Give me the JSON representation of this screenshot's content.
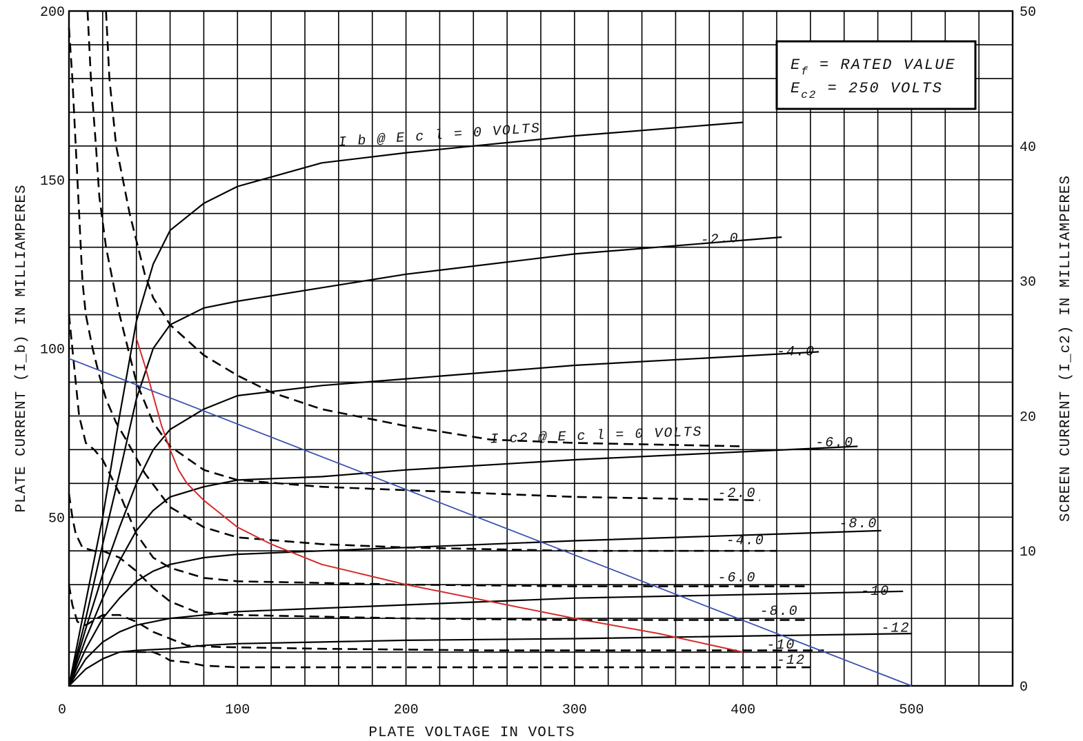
{
  "chart_data": {
    "type": "line",
    "title": "",
    "xlabel": "PLATE VOLTAGE IN VOLTS",
    "ylabel_left": "PLATE CURRENT (I_b) IN MILLIAMPERES",
    "ylabel_right": "SCREEN CURRENT (I_c2) IN MILLIAMPERES",
    "xlim": [
      0,
      560
    ],
    "ylim_left": [
      0,
      200
    ],
    "ylim_right": [
      0,
      50
    ],
    "grid": true,
    "x_ticks": [
      "0",
      "100",
      "200",
      "300",
      "400",
      "500"
    ],
    "y_ticks_left": [
      "50",
      "100",
      "150",
      "200"
    ],
    "y_ticks_right": [
      "0",
      "10",
      "20",
      "30",
      "40",
      "50"
    ],
    "conditions_box": {
      "line1_symbol": "E",
      "line1_sub": "f",
      "line1_text": "= RATED VALUE",
      "line2_symbol": "E",
      "line2_sub": "c2",
      "line2_text": "= 250 VOLTS"
    },
    "plate_series": [
      {
        "label": "I b @ E c l = 0 VOLTS",
        "label_at": [
          160,
          160
        ],
        "label_rot": -4,
        "points": [
          [
            0,
            0
          ],
          [
            10,
            25
          ],
          [
            20,
            50
          ],
          [
            30,
            80
          ],
          [
            40,
            108
          ],
          [
            50,
            125
          ],
          [
            60,
            135
          ],
          [
            80,
            143
          ],
          [
            100,
            148
          ],
          [
            150,
            155
          ],
          [
            200,
            158
          ],
          [
            300,
            163
          ],
          [
            400,
            167
          ]
        ]
      },
      {
        "label": "-2.0",
        "label_at": [
          375,
          131
        ],
        "label_rot": -3,
        "points": [
          [
            0,
            0
          ],
          [
            10,
            20
          ],
          [
            20,
            42
          ],
          [
            30,
            63
          ],
          [
            40,
            85
          ],
          [
            50,
            100
          ],
          [
            60,
            107
          ],
          [
            80,
            112
          ],
          [
            100,
            114
          ],
          [
            150,
            118
          ],
          [
            200,
            122
          ],
          [
            300,
            128
          ],
          [
            423,
            133
          ]
        ]
      },
      {
        "label": "-4.0",
        "label_at": [
          420,
          98
        ],
        "label_rot": 0,
        "points": [
          [
            0,
            0
          ],
          [
            10,
            17
          ],
          [
            20,
            33
          ],
          [
            30,
            47
          ],
          [
            40,
            60
          ],
          [
            50,
            70
          ],
          [
            60,
            76
          ],
          [
            80,
            82
          ],
          [
            100,
            86
          ],
          [
            150,
            89
          ],
          [
            200,
            91
          ],
          [
            300,
            95
          ],
          [
            445,
            99
          ]
        ]
      },
      {
        "label": "-6.0",
        "label_at": [
          443,
          71
        ],
        "label_rot": 0,
        "points": [
          [
            0,
            0
          ],
          [
            10,
            14
          ],
          [
            20,
            26
          ],
          [
            30,
            37
          ],
          [
            40,
            46
          ],
          [
            50,
            52
          ],
          [
            60,
            56
          ],
          [
            80,
            59
          ],
          [
            100,
            61
          ],
          [
            150,
            62
          ],
          [
            200,
            64
          ],
          [
            300,
            67
          ],
          [
            468,
            71
          ]
        ]
      },
      {
        "label": "-8.0",
        "label_at": [
          457,
          47
        ],
        "label_rot": 0,
        "points": [
          [
            0,
            0
          ],
          [
            10,
            11
          ],
          [
            20,
            20
          ],
          [
            30,
            26
          ],
          [
            40,
            31
          ],
          [
            50,
            34
          ],
          [
            60,
            36
          ],
          [
            80,
            38
          ],
          [
            100,
            39
          ],
          [
            150,
            40
          ],
          [
            200,
            41
          ],
          [
            300,
            43
          ],
          [
            482,
            46
          ]
        ]
      },
      {
        "label": "-10",
        "label_at": [
          470,
          27
        ],
        "label_rot": 0,
        "points": [
          [
            0,
            0
          ],
          [
            10,
            8
          ],
          [
            20,
            13
          ],
          [
            30,
            16
          ],
          [
            40,
            18
          ],
          [
            60,
            20
          ],
          [
            80,
            21
          ],
          [
            100,
            22
          ],
          [
            150,
            23
          ],
          [
            200,
            24
          ],
          [
            300,
            26
          ],
          [
            495,
            28
          ]
        ]
      },
      {
        "label": "-12",
        "label_at": [
          482,
          16
        ],
        "label_rot": 0,
        "points": [
          [
            0,
            0
          ],
          [
            10,
            5
          ],
          [
            20,
            8
          ],
          [
            30,
            10
          ],
          [
            40,
            10.5
          ],
          [
            60,
            11
          ],
          [
            80,
            12
          ],
          [
            100,
            12.5
          ],
          [
            150,
            13
          ],
          [
            200,
            13.5
          ],
          [
            300,
            14
          ],
          [
            500,
            15.5
          ]
        ]
      }
    ],
    "screen_series": [
      {
        "label": "I c2 @ E c l = 0 VOLTS",
        "label_at": [
          250,
          72
        ],
        "label_rot": -2,
        "points": [
          [
            22,
            200
          ],
          [
            24,
            180
          ],
          [
            28,
            160
          ],
          [
            32,
            150
          ],
          [
            36,
            140
          ],
          [
            40,
            132
          ],
          [
            45,
            122
          ],
          [
            50,
            115
          ],
          [
            60,
            107
          ],
          [
            80,
            98
          ],
          [
            100,
            92
          ],
          [
            120,
            87
          ],
          [
            150,
            82
          ],
          [
            200,
            77
          ],
          [
            250,
            73
          ],
          [
            300,
            72
          ],
          [
            400,
            71
          ]
        ]
      },
      {
        "label": "-2.0",
        "label_at": [
          385,
          56
        ],
        "label_rot": 0,
        "points": [
          [
            11,
            200
          ],
          [
            13,
            180
          ],
          [
            16,
            160
          ],
          [
            18,
            145
          ],
          [
            22,
            130
          ],
          [
            26,
            120
          ],
          [
            30,
            110
          ],
          [
            35,
            100
          ],
          [
            40,
            90
          ],
          [
            50,
            78
          ],
          [
            60,
            71
          ],
          [
            80,
            64
          ],
          [
            100,
            61
          ],
          [
            150,
            59
          ],
          [
            200,
            58
          ],
          [
            300,
            56
          ],
          [
            410,
            55
          ]
        ]
      },
      {
        "label": "-4.0",
        "label_at": [
          390,
          42
        ],
        "label_rot": 0,
        "points": [
          [
            0,
            195
          ],
          [
            2,
            180
          ],
          [
            4,
            160
          ],
          [
            6,
            140
          ],
          [
            8,
            120
          ],
          [
            10,
            110
          ],
          [
            14,
            100
          ],
          [
            18,
            92
          ],
          [
            22,
            85
          ],
          [
            28,
            78
          ],
          [
            35,
            72
          ],
          [
            45,
            63
          ],
          [
            60,
            53
          ],
          [
            80,
            47
          ],
          [
            100,
            44
          ],
          [
            150,
            42
          ],
          [
            200,
            41
          ],
          [
            300,
            40
          ],
          [
            420,
            40
          ]
        ]
      },
      {
        "label": "-6.0",
        "label_at": [
          385,
          31
        ],
        "label_rot": 0,
        "points": [
          [
            0,
            110
          ],
          [
            2,
            100
          ],
          [
            4,
            90
          ],
          [
            6,
            80
          ],
          [
            10,
            72
          ],
          [
            15,
            70
          ],
          [
            20,
            67
          ],
          [
            25,
            62
          ],
          [
            30,
            57
          ],
          [
            40,
            45
          ],
          [
            50,
            38
          ],
          [
            60,
            35
          ],
          [
            80,
            32
          ],
          [
            100,
            31
          ],
          [
            200,
            30
          ],
          [
            300,
            29.5
          ],
          [
            440,
            29.5
          ]
        ]
      },
      {
        "label": "-8.0",
        "label_at": [
          410,
          21
        ],
        "label_rot": 0,
        "points": [
          [
            0,
            57
          ],
          [
            2,
            50
          ],
          [
            4,
            45
          ],
          [
            8,
            41
          ],
          [
            15,
            40
          ],
          [
            20,
            40
          ],
          [
            30,
            38
          ],
          [
            40,
            34
          ],
          [
            50,
            29
          ],
          [
            60,
            25
          ],
          [
            75,
            22
          ],
          [
            100,
            21
          ],
          [
            200,
            20
          ],
          [
            300,
            19.5
          ],
          [
            440,
            19.5
          ]
        ]
      },
      {
        "label": "-10",
        "label_at": [
          414,
          11
        ],
        "label_rot": 0,
        "points": [
          [
            0,
            30
          ],
          [
            2,
            24
          ],
          [
            5,
            19
          ],
          [
            10,
            18
          ],
          [
            20,
            21
          ],
          [
            30,
            21
          ],
          [
            40,
            19
          ],
          [
            50,
            16
          ],
          [
            60,
            14
          ],
          [
            70,
            12
          ],
          [
            90,
            11.5
          ],
          [
            150,
            11
          ],
          [
            250,
            10.5
          ],
          [
            448,
            10.5
          ]
        ]
      },
      {
        "label": "-12",
        "label_at": [
          420,
          6.5
        ],
        "label_rot": 0,
        "points": [
          [
            40,
            10
          ],
          [
            50,
            10
          ],
          [
            55,
            9
          ],
          [
            60,
            7.5
          ],
          [
            70,
            7
          ],
          [
            80,
            6
          ],
          [
            100,
            5.5
          ],
          [
            200,
            5.5
          ],
          [
            300,
            5.5
          ],
          [
            440,
            5.5
          ]
        ]
      }
    ],
    "red_curve": [
      [
        40,
        103
      ],
      [
        45,
        95
      ],
      [
        50,
        86
      ],
      [
        55,
        77
      ],
      [
        60,
        70
      ],
      [
        65,
        64
      ],
      [
        70,
        60
      ],
      [
        80,
        55
      ],
      [
        90,
        51
      ],
      [
        100,
        47
      ],
      [
        120,
        42
      ],
      [
        150,
        36
      ],
      [
        200,
        30
      ],
      [
        250,
        25
      ],
      [
        300,
        20
      ],
      [
        350,
        15.5
      ],
      [
        400,
        10
      ]
    ],
    "blue_line": [
      [
        0,
        97
      ],
      [
        500,
        0
      ]
    ],
    "colors": {
      "grid": "#000000",
      "curve": "#000000",
      "red": "#d42a2a",
      "blue": "#3a4fb0"
    }
  }
}
